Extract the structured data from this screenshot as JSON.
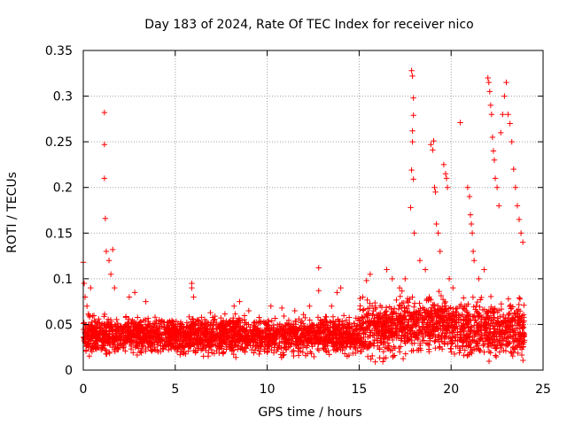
{
  "chart_data": {
    "type": "scatter",
    "title": "Day 183 of 2024, Rate Of TEC Index for receiver nico",
    "xlabel": "GPS time / hours",
    "ylabel": "ROTI / TECUs",
    "xlim": [
      0,
      25
    ],
    "ylim": [
      0,
      0.35
    ],
    "xticks": [
      0,
      5,
      10,
      15,
      20,
      25
    ],
    "yticks": [
      0,
      0.05,
      0.1,
      0.15,
      0.2,
      0.25,
      0.3,
      0.35
    ],
    "xtick_labels": [
      "0",
      "5",
      "10",
      "15",
      "20",
      "25"
    ],
    "ytick_labels": [
      "0",
      "0.05",
      "0.1",
      "0.15",
      "0.2",
      "0.25",
      "0.3",
      "0.35"
    ],
    "grid": true,
    "marker": "plus",
    "color": "#ff0000",
    "series": [
      {
        "x": [
          0.0,
          0.05,
          0.1,
          0.2,
          0.3,
          0.4,
          1.15,
          1.15,
          1.15,
          1.2,
          1.25,
          1.4,
          1.5,
          1.6,
          1.7,
          2.5,
          2.8,
          3.4,
          5.9,
          5.9,
          6.0,
          8.2,
          8.5,
          9.0,
          10.2,
          10.8,
          11.5,
          12.3,
          12.8,
          12.8,
          13.5,
          13.8,
          14.0,
          15.2,
          15.4,
          15.6,
          16.5,
          16.8,
          17.2,
          17.5,
          17.8,
          17.85,
          17.9,
          17.95,
          17.95,
          17.9,
          17.85,
          17.9,
          17.95,
          18.0,
          18.3,
          18.6,
          18.9,
          19.0,
          19.05,
          19.1,
          19.15,
          19.2,
          19.3,
          19.4,
          19.6,
          19.7,
          19.75,
          19.8,
          19.9,
          20.1,
          20.5,
          20.9,
          21.0,
          21.05,
          21.1,
          21.15,
          21.2,
          21.25,
          21.5,
          21.8,
          22.0,
          22.05,
          22.1,
          22.15,
          22.2,
          22.25,
          22.3,
          22.35,
          22.4,
          22.5,
          22.6,
          22.7,
          22.8,
          22.9,
          23.0,
          23.1,
          23.2,
          23.3,
          23.4,
          23.5,
          23.6,
          23.7,
          23.8,
          23.9
        ],
        "y": [
          0.118,
          0.095,
          0.08,
          0.07,
          0.06,
          0.09,
          0.282,
          0.247,
          0.21,
          0.166,
          0.13,
          0.12,
          0.105,
          0.132,
          0.09,
          0.08,
          0.085,
          0.075,
          0.095,
          0.09,
          0.08,
          0.07,
          0.075,
          0.065,
          0.07,
          0.068,
          0.065,
          0.07,
          0.112,
          0.087,
          0.07,
          0.085,
          0.09,
          0.08,
          0.098,
          0.105,
          0.11,
          0.1,
          0.09,
          0.1,
          0.178,
          0.219,
          0.262,
          0.279,
          0.298,
          0.322,
          0.328,
          0.25,
          0.209,
          0.15,
          0.12,
          0.11,
          0.247,
          0.241,
          0.251,
          0.2,
          0.195,
          0.16,
          0.15,
          0.13,
          0.225,
          0.215,
          0.21,
          0.2,
          0.1,
          0.09,
          0.271,
          0.2,
          0.19,
          0.17,
          0.16,
          0.15,
          0.13,
          0.12,
          0.1,
          0.11,
          0.32,
          0.315,
          0.305,
          0.29,
          0.28,
          0.255,
          0.24,
          0.23,
          0.21,
          0.2,
          0.18,
          0.26,
          0.28,
          0.3,
          0.315,
          0.28,
          0.27,
          0.25,
          0.22,
          0.2,
          0.18,
          0.165,
          0.15,
          0.14
        ]
      }
    ]
  }
}
